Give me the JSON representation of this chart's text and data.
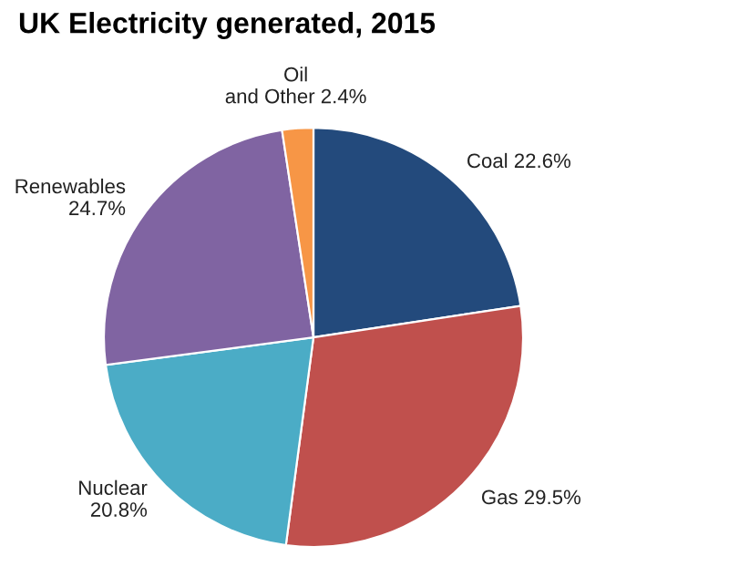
{
  "chart_data": {
    "type": "pie",
    "title": "UK Electricity generated, 2015",
    "categories": [
      "Coal",
      "Gas",
      "Nuclear",
      "Renewables",
      "Oil and Other"
    ],
    "values": [
      22.6,
      29.5,
      20.8,
      24.7,
      2.4
    ],
    "colors": [
      "#234a7c",
      "#c0504d",
      "#4bacc6",
      "#8064a2",
      "#f79646"
    ],
    "value_labels": [
      "22.6%",
      "29.5%",
      "20.8%",
      "24.7%",
      "2.4%"
    ],
    "legend": false
  }
}
